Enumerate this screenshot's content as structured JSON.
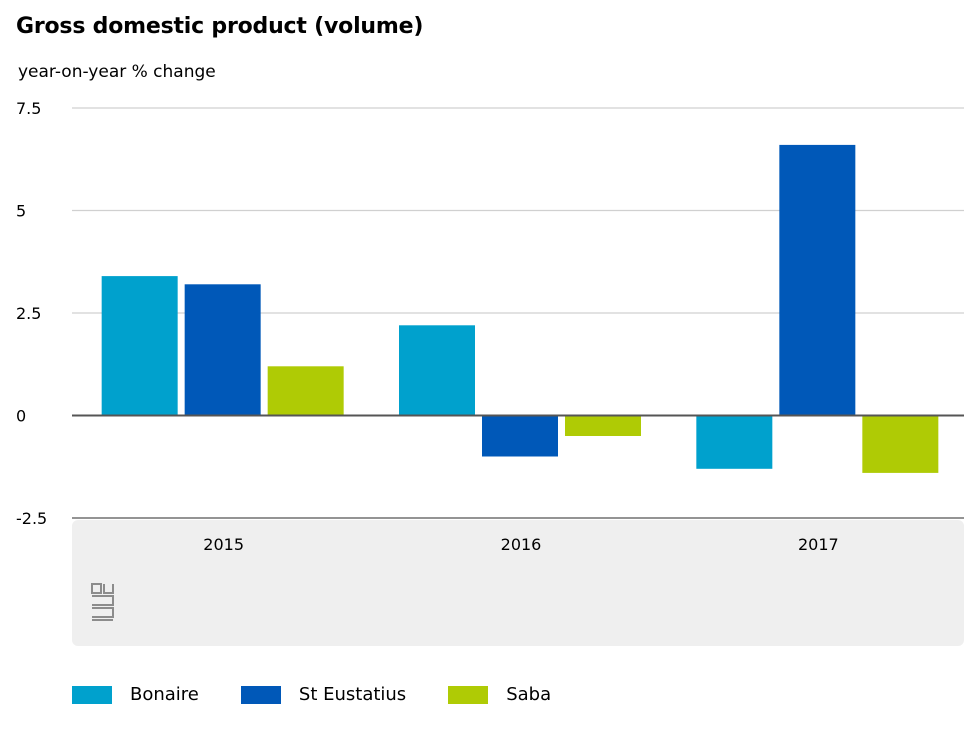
{
  "chart_data": {
    "type": "bar",
    "title": "Gross domestic product (volume)",
    "ylabel": "year-on-year % change",
    "categories": [
      "2015",
      "2016",
      "2017"
    ],
    "ylim": [
      -2.5,
      7.5
    ],
    "yticks": [
      7.5,
      5,
      2.5,
      0,
      -2.5
    ],
    "ytick_labels": [
      "7.5",
      "5",
      "2.5",
      "0",
      "-2.5"
    ],
    "grid": true,
    "legend": "bottom",
    "series": [
      {
        "name": "Bonaire",
        "color": "#00a1cd",
        "values": [
          3.4,
          2.2,
          -1.3
        ]
      },
      {
        "name": "St Eustatius",
        "color": "#0058b8",
        "values": [
          3.2,
          -1.0,
          6.6
        ]
      },
      {
        "name": "Saba",
        "color": "#afcb05",
        "values": [
          1.2,
          -0.5,
          -1.4
        ]
      }
    ]
  },
  "logo": "cbs"
}
